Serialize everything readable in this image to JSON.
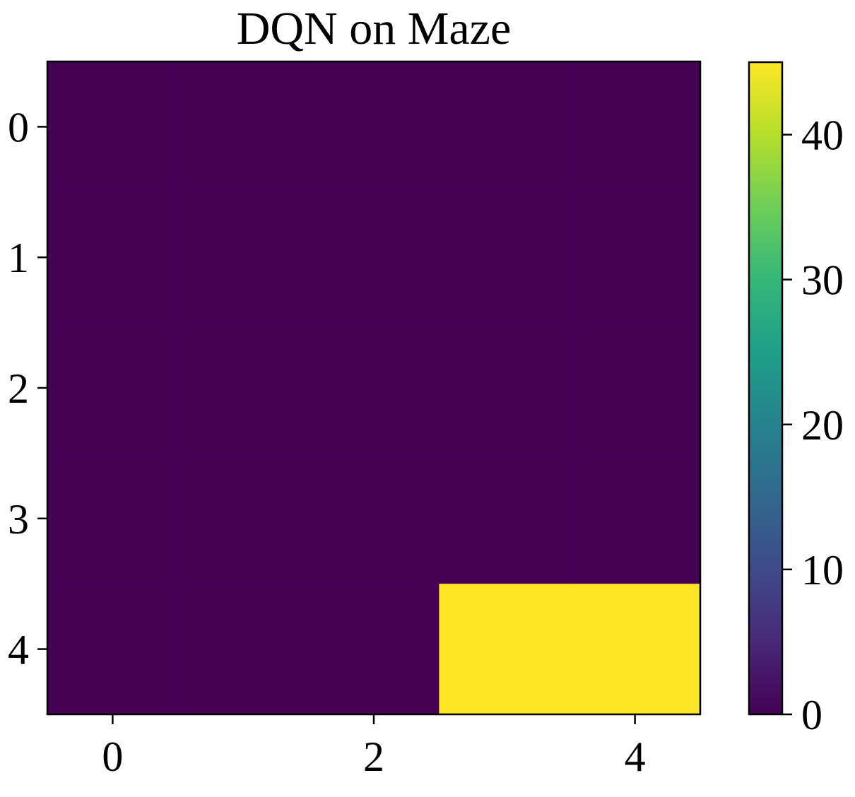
{
  "chart_data": {
    "type": "heatmap",
    "title": "DQN on Maze",
    "xlabel": "",
    "ylabel": "",
    "rows": 5,
    "cols": 5,
    "values": [
      [
        0,
        0,
        0,
        0,
        0
      ],
      [
        0,
        0,
        0,
        0,
        0
      ],
      [
        0,
        0,
        0,
        0,
        0
      ],
      [
        0,
        0,
        0,
        0,
        0
      ],
      [
        0,
        0,
        0,
        45,
        45
      ]
    ],
    "xticks": [
      0,
      2,
      4
    ],
    "yticks": [
      0,
      1,
      2,
      3,
      4
    ],
    "colorbar": {
      "min": 0,
      "max": 45,
      "ticks": [
        0,
        10,
        20,
        30,
        40
      ],
      "colormap": "viridis"
    },
    "grid": false
  },
  "colors": {
    "viridis_stops": [
      "#440154",
      "#482878",
      "#3e4a89",
      "#31688e",
      "#26828e",
      "#1f9e89",
      "#35b779",
      "#6ece58",
      "#b5de2b",
      "#fde725"
    ]
  }
}
